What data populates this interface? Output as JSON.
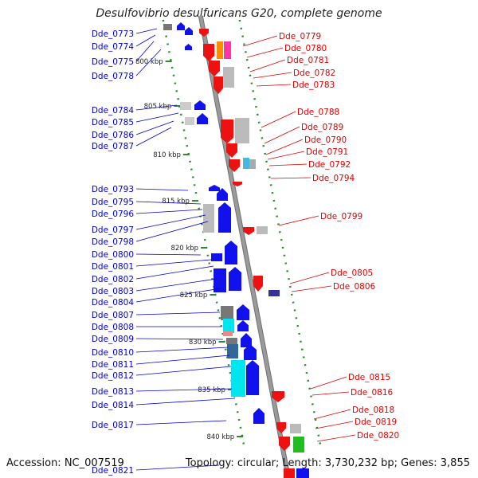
{
  "title": "Desulfovibrio desulfuricans G20, complete genome",
  "footer": {
    "accession": "Accession: NC_007519",
    "topology": "Topology: circular; Length: 3,730,232 bp; Genes: 3,855"
  },
  "colors": {
    "left_label": "#0000cc",
    "right_label": "#dd0000",
    "backbone": "#9a9a9a",
    "tick": "#2e8b2e"
  },
  "scale_marks": [
    "800 kbp",
    "805 kbp",
    "810 kbp",
    "815 kbp",
    "820 kbp",
    "825 kbp",
    "830 kbp",
    "835 kbp",
    "840 kbp"
  ],
  "left_genes": [
    "Dde_0773",
    "Dde_0774",
    "Dde_0775",
    "Dde_0778",
    "Dde_0784",
    "Dde_0785",
    "Dde_0786",
    "Dde_0787",
    "Dde_0793",
    "Dde_0795",
    "Dde_0796",
    "Dde_0797",
    "Dde_0798",
    "Dde_0800",
    "Dde_0801",
    "Dde_0802",
    "Dde_0803",
    "Dde_0804",
    "Dde_0807",
    "Dde_0808",
    "Dde_0809",
    "Dde_0810",
    "Dde_0811",
    "Dde_0812",
    "Dde_0813",
    "Dde_0814",
    "Dde_0817",
    "Dde_0821"
  ],
  "right_genes": [
    "Dde_0779",
    "Dde_0780",
    "Dde_0781",
    "Dde_0782",
    "Dde_0783",
    "Dde_0788",
    "Dde_0789",
    "Dde_0790",
    "Dde_0791",
    "Dde_0792",
    "Dde_0794",
    "Dde_0799",
    "Dde_0805",
    "Dde_0806",
    "Dde_0815",
    "Dde_0816",
    "Dde_0818",
    "Dde_0819",
    "Dde_0820"
  ]
}
